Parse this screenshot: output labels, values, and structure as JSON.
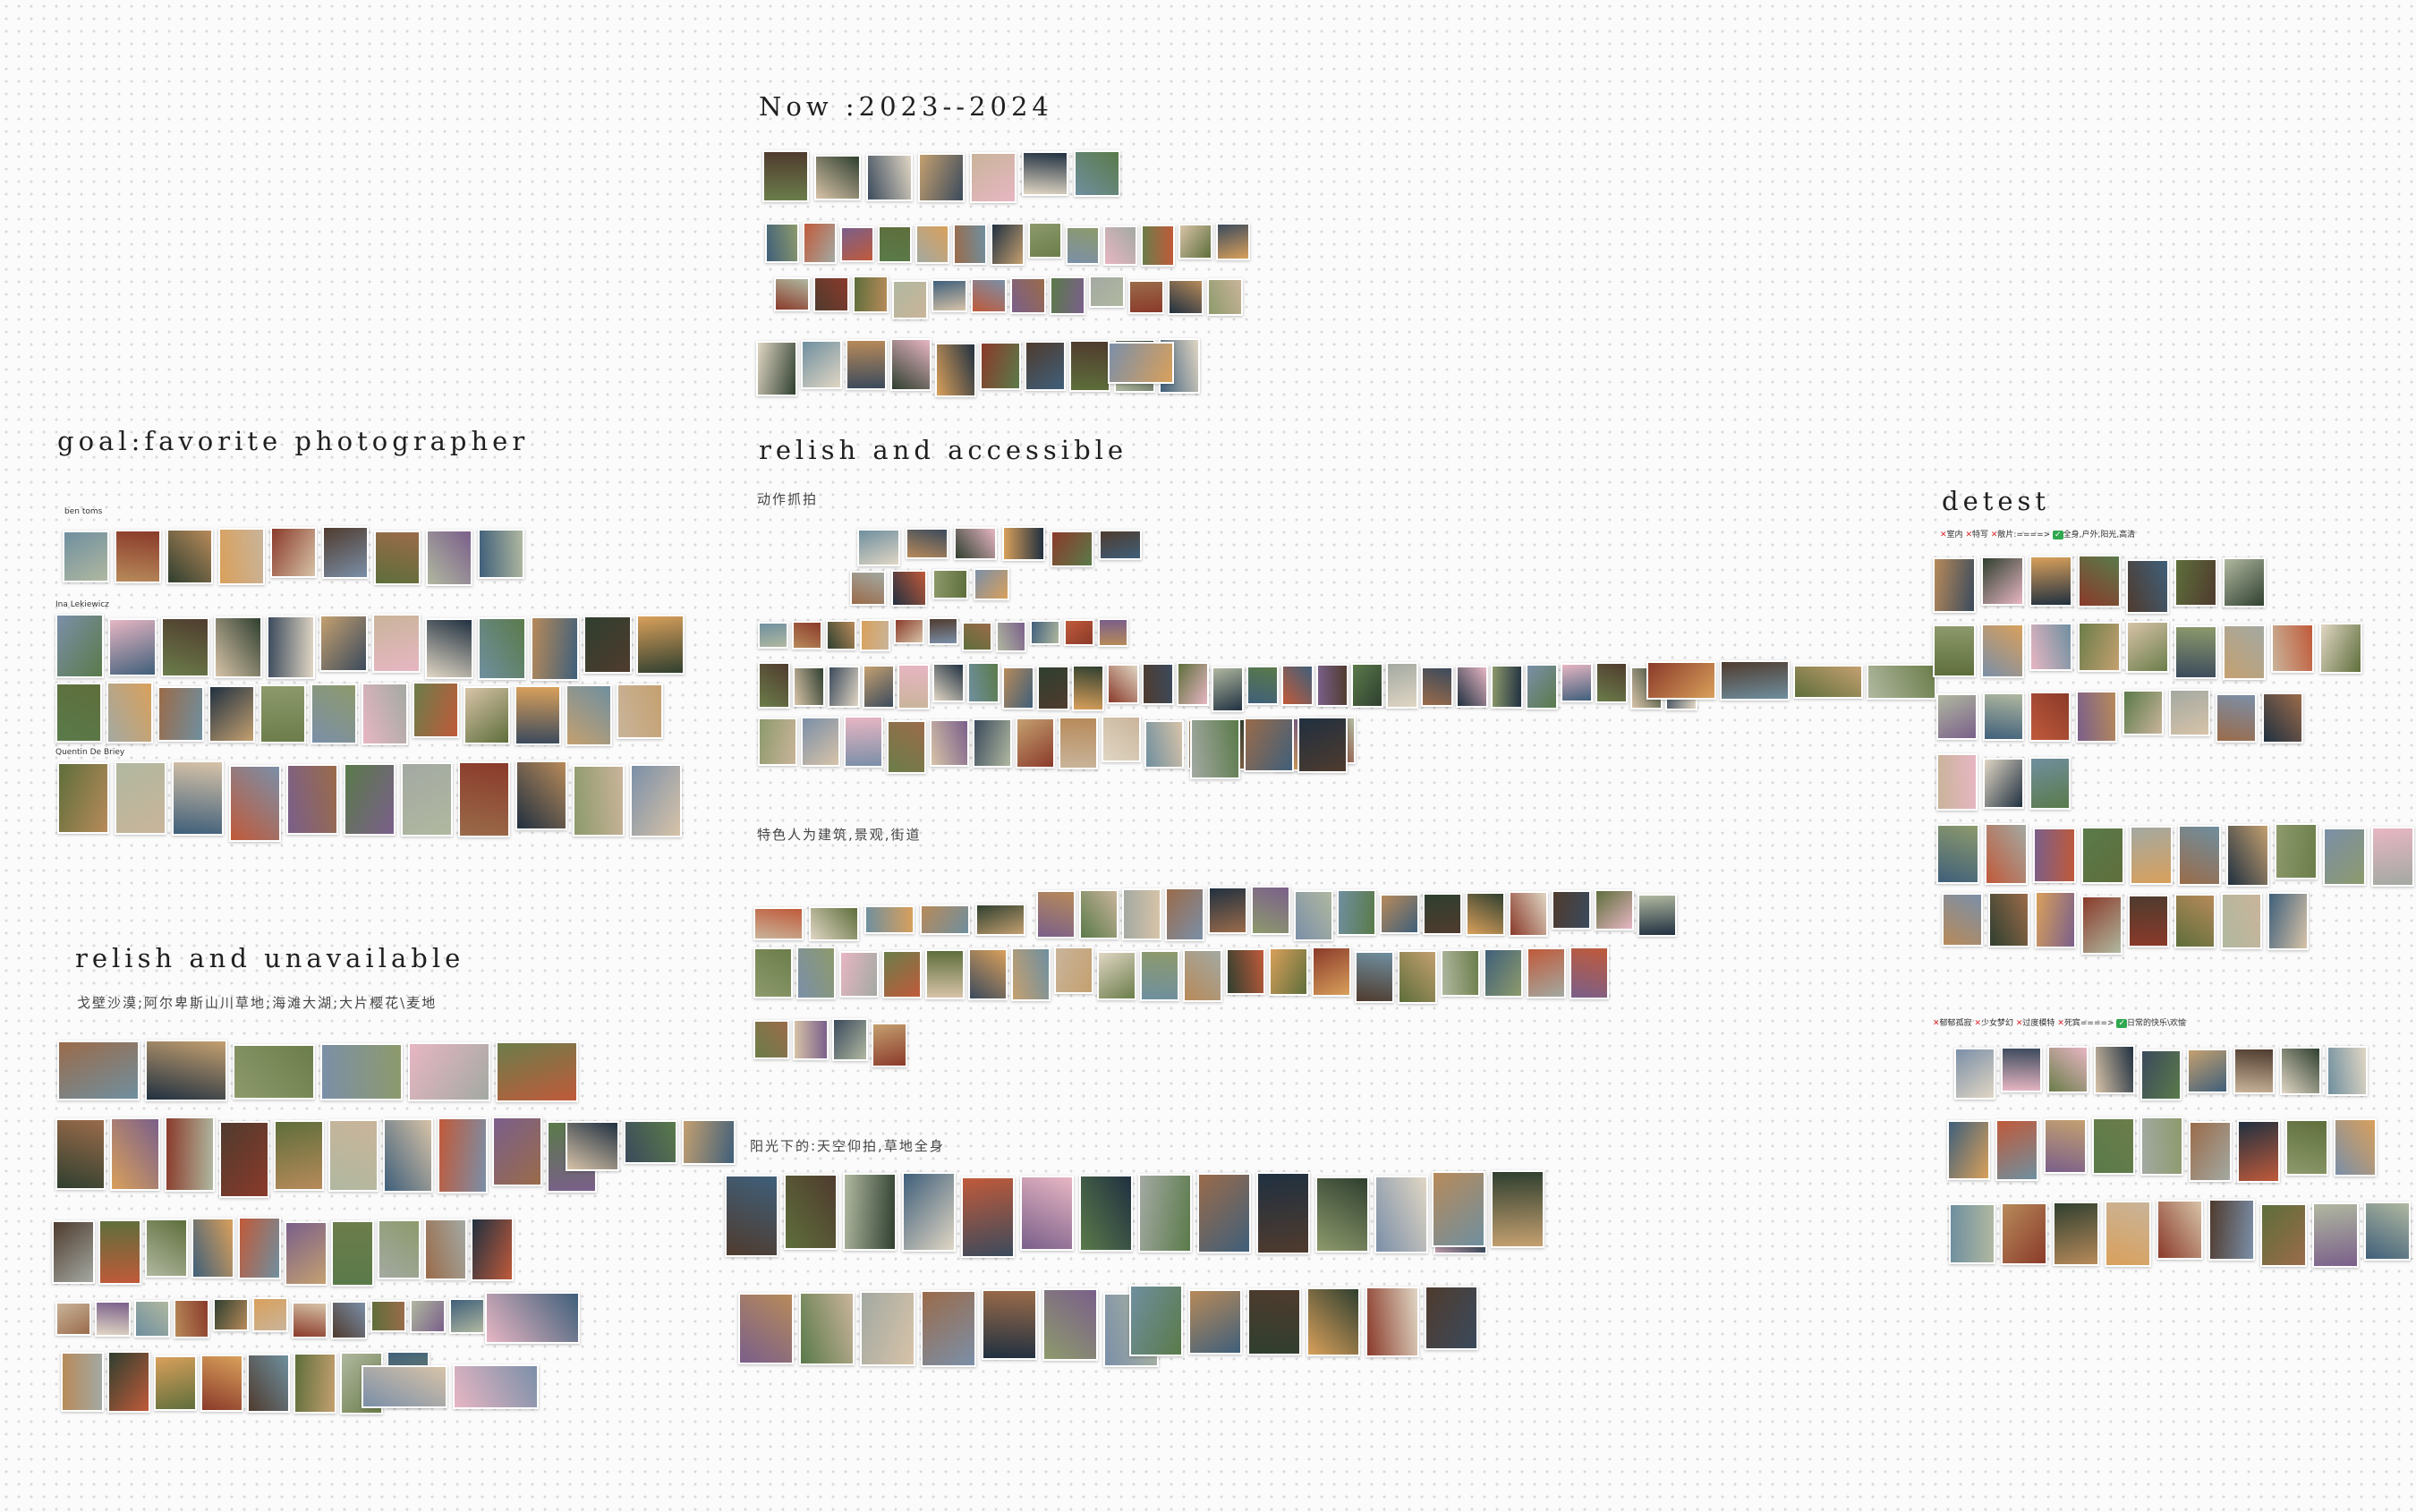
{
  "canvas": {
    "name": "moodboard-canvas"
  },
  "headings": {
    "now": "Now :2023--2024",
    "goal": "goal:favorite photographer",
    "relish_accessible": "relish and accessible",
    "relish_unavailable": "relish and unavailable",
    "detest": "detest"
  },
  "subtitles": {
    "action": "动作抓拍",
    "architecture": "特色人为建筑,景观,街道",
    "sunlight": "阳光下的:天空仰拍,草地全身",
    "unavailable_places": "戈壁沙漠;阿尔卑斯山川草地;海滩大湖;大片樱花\\麦地"
  },
  "photographers": {
    "ben_toms": "ben toms",
    "ina": "Ina Lekiewicz",
    "quentin": "Quentin De Briey"
  },
  "detest_notes": {
    "row1": [
      "室内",
      "特写",
      "散片:====>",
      "全身,户外,阳光,高清"
    ],
    "row2": [
      "郁郁孤寂",
      "少女梦幻",
      "过度模特",
      "死宾====>",
      "日常的快乐\\欢愉"
    ]
  },
  "palette": [
    "#6b7d4a",
    "#b78a5a",
    "#3f5f7a",
    "#8d9a6c",
    "#c9b49a",
    "#4f3b2e",
    "#a3a9a2",
    "#d7c3a8",
    "#2f3f2f",
    "#c05a3a",
    "#7b8fa8",
    "#e0d6c4",
    "#5e6e3b",
    "#9a6b4a",
    "#3b4a5c",
    "#d9a05b",
    "#7a5f8a",
    "#e7b6c3",
    "#6f8f9f",
    "#b0b8a0",
    "#203040",
    "#c4a070",
    "#8a3a2a",
    "#5a7a4a"
  ]
}
